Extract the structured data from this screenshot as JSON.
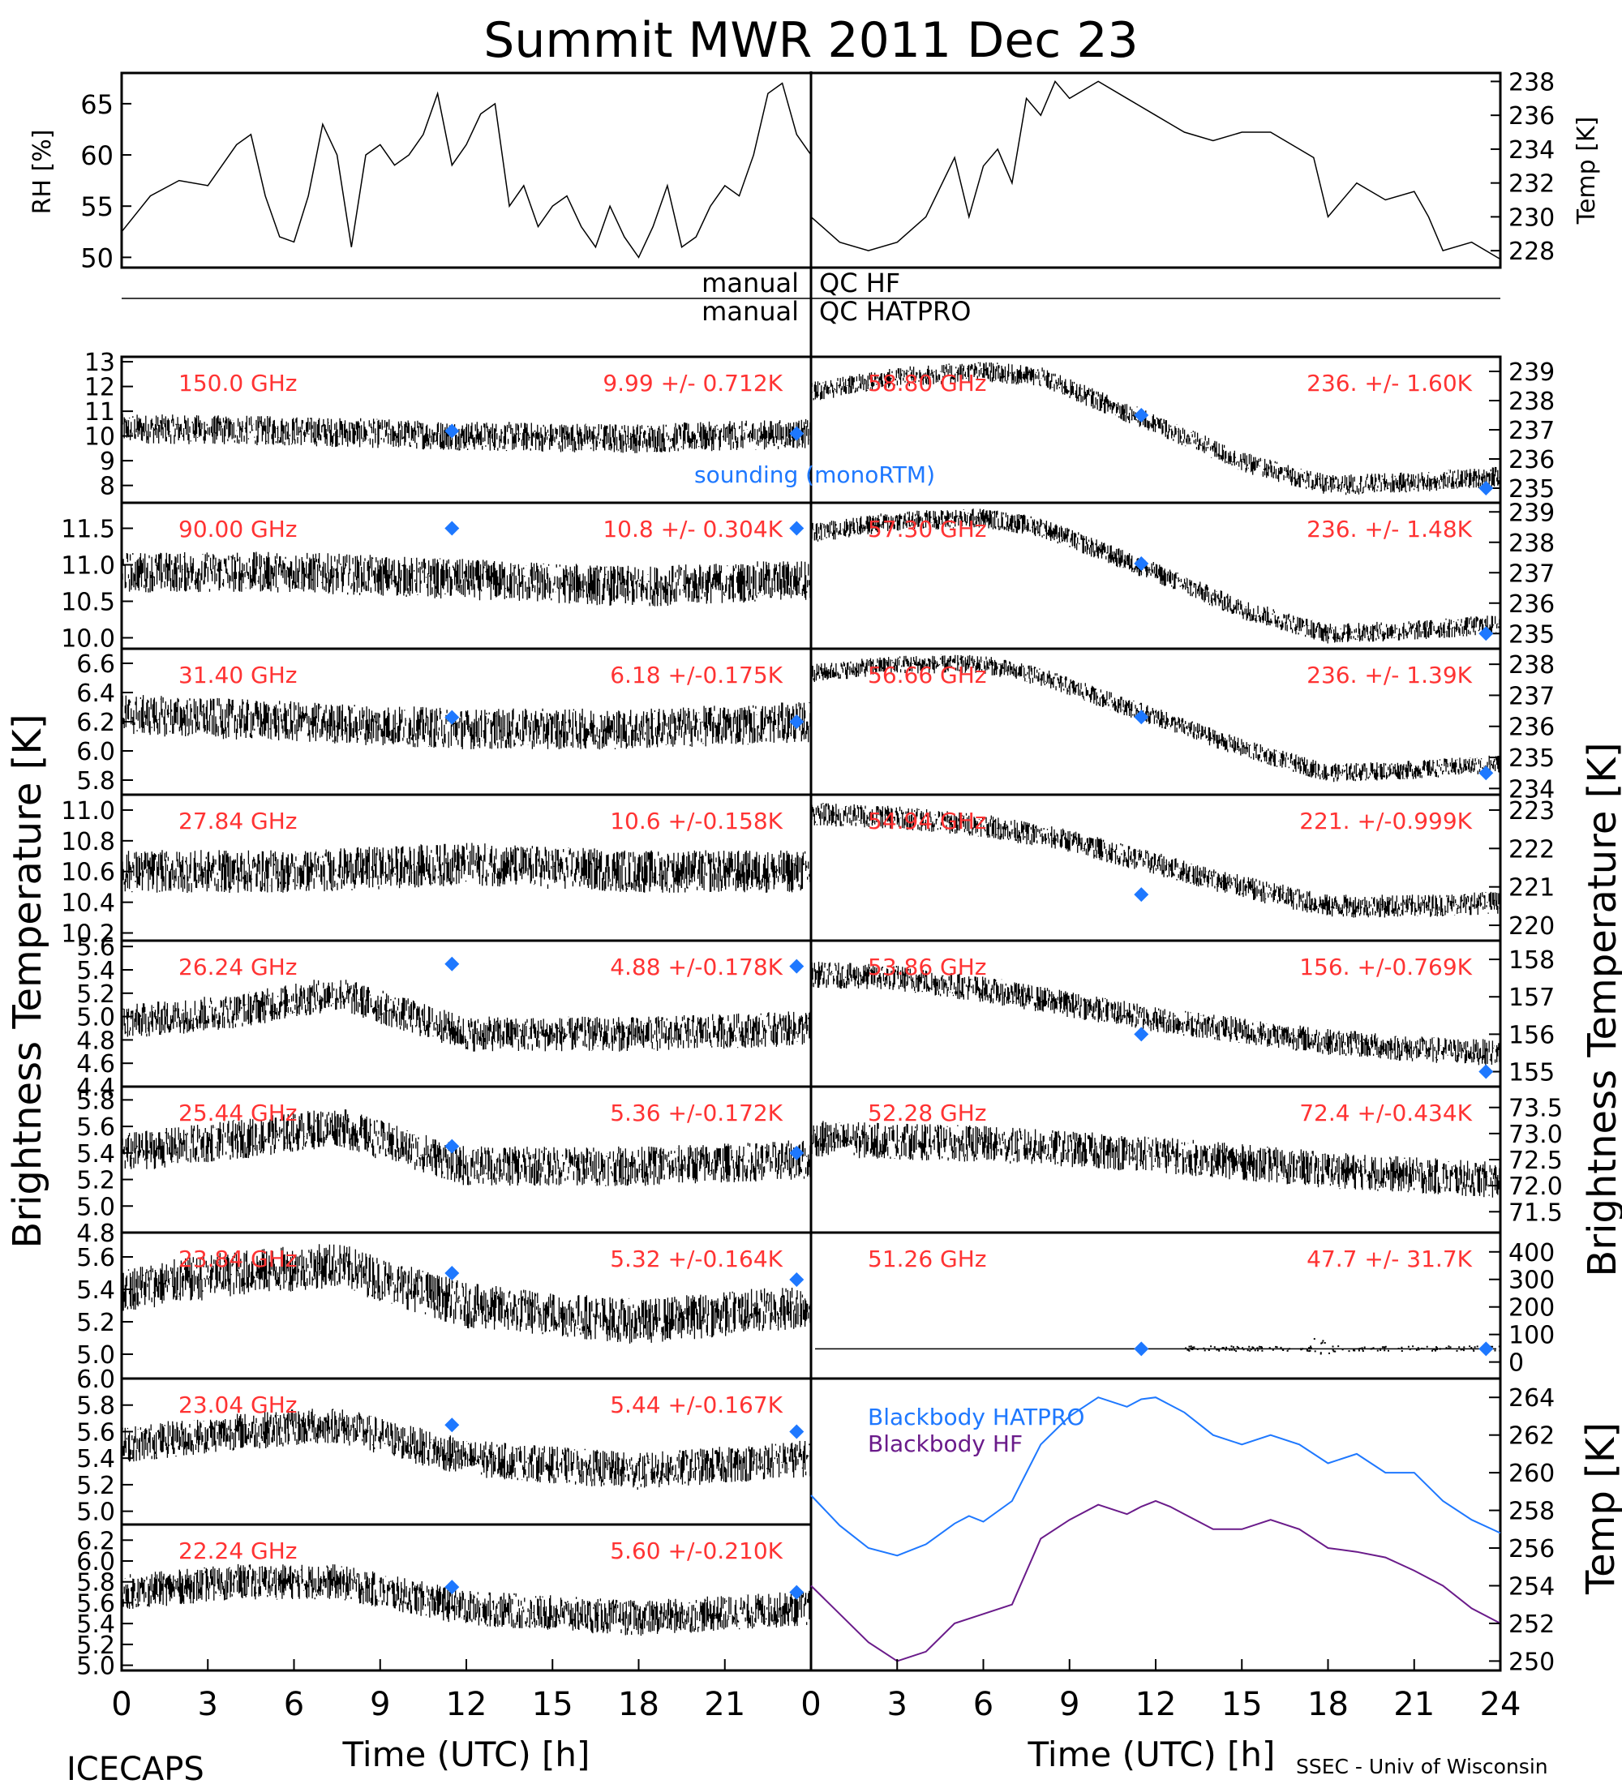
{
  "title": "Summit MWR 2011 Dec 23",
  "footer": {
    "left": "ICECAPS",
    "right": "SSEC - Univ of Wisconsin"
  },
  "axes": {
    "time_label": "Time (UTC) [h]",
    "time_ticks": [
      "0",
      "3",
      "6",
      "9",
      "12",
      "15",
      "18",
      "21",
      "24"
    ],
    "left_label": "Brightness Temperature [K]",
    "right_label": "Brightness Temperature [K]",
    "rh_label": "RH [%]",
    "temp_label": "Temp [K]",
    "bb_temp_label": "Temp [K]"
  },
  "qc": {
    "hf_left": "manual",
    "hf_right": "QC HF",
    "hatpro_left": "manual",
    "hatpro_right": "QC HATPRO"
  },
  "legend": {
    "sounding": "sounding (monoRTM)",
    "bb_hatpro": "Blackbody HATPRO",
    "bb_hf": "Blackbody HF"
  },
  "colors": {
    "annotation": "#ff3333",
    "sounding": "#1e78ff",
    "bb_hatpro": "#1e78ff",
    "bb_hf": "#6a1b8a",
    "trace": "#000000"
  },
  "chart_data": [
    {
      "type": "line",
      "title": "",
      "ylabel": "RH [%]",
      "ylim": [
        49,
        68
      ],
      "yticks": [
        "50",
        "55",
        "60",
        "65"
      ],
      "x": [
        0,
        1,
        2,
        3,
        4,
        4.5,
        5,
        5.5,
        6,
        6.5,
        7,
        7.5,
        8,
        8.5,
        9,
        9.5,
        10,
        10.5,
        11,
        11.5,
        12,
        12.5,
        13,
        13.5,
        14,
        14.5,
        15,
        15.5,
        16,
        16.5,
        17,
        17.5,
        18,
        18.5,
        19,
        19.5,
        20,
        20.5,
        21,
        21.5,
        22,
        22.5,
        23,
        23.5,
        24
      ],
      "values": [
        52.5,
        56,
        57.5,
        57,
        61,
        62,
        56,
        52,
        51.5,
        56,
        63,
        60,
        51,
        60,
        61,
        59,
        60,
        62,
        66,
        59,
        61,
        64,
        65,
        55,
        57,
        53,
        55,
        56,
        53,
        51,
        55,
        52,
        50,
        53,
        57,
        51,
        52,
        55,
        57,
        56,
        60,
        66,
        67,
        62,
        60
      ]
    },
    {
      "type": "line",
      "title": "",
      "ylabel": "Temp [K]",
      "ylim": [
        227,
        238.5
      ],
      "yticks": [
        "228",
        "230",
        "232",
        "234",
        "236",
        "238"
      ],
      "x": [
        0,
        1,
        2,
        3,
        4,
        5,
        5.5,
        6,
        6.5,
        7,
        7.5,
        8,
        8.5,
        9,
        9.5,
        10,
        11,
        12,
        12.5,
        13,
        14,
        15,
        16,
        17,
        17.5,
        18,
        19,
        20,
        21,
        21.5,
        22,
        23,
        24
      ],
      "values": [
        230,
        228.5,
        228,
        228.5,
        230,
        233.5,
        230,
        233,
        234,
        232,
        237,
        236,
        238,
        237,
        237.5,
        238,
        237,
        236,
        235.5,
        235,
        234.5,
        235,
        235,
        234,
        233.5,
        230,
        232,
        231,
        231.5,
        230,
        228,
        228.5,
        227.5
      ]
    },
    {
      "type": "scatter",
      "label": "150.0 GHz",
      "stats": "9.99 +/- 0.712K",
      "side": "left",
      "ylim": [
        7.3,
        13.2
      ],
      "yticks": [
        "8",
        "9",
        "10",
        "11",
        "12",
        "13"
      ],
      "tick_values": [
        8,
        9,
        10,
        11,
        12,
        13
      ],
      "trend_x": [
        0,
        6,
        12,
        18,
        24
      ],
      "trend_y": [
        10.3,
        10.2,
        10.0,
        9.9,
        10.1
      ],
      "noise": 0.6,
      "sounding_x": [
        11.5,
        23.5
      ],
      "sounding_y": [
        10.2,
        10.1
      ]
    },
    {
      "type": "scatter",
      "label": "90.00 GHz",
      "stats": "10.8 +/- 0.304K",
      "side": "left",
      "ylim": [
        9.85,
        11.85
      ],
      "yticks": [
        "10.0",
        "10.5",
        "11.0",
        "11.5"
      ],
      "tick_values": [
        10,
        10.5,
        11,
        11.5
      ],
      "trend_x": [
        0,
        6,
        12,
        18,
        24
      ],
      "trend_y": [
        10.9,
        10.9,
        10.8,
        10.7,
        10.8
      ],
      "noise": 0.28,
      "sounding_x": [
        11.5,
        23.5
      ],
      "sounding_y": [
        11.5,
        11.5
      ]
    },
    {
      "type": "scatter",
      "label": "31.40 GHz",
      "stats": "6.18 +/-0.175K",
      "side": "left",
      "ylim": [
        5.7,
        6.7
      ],
      "yticks": [
        "5.8",
        "6.0",
        "6.2",
        "6.4",
        "6.6"
      ],
      "tick_values": [
        5.8,
        6.0,
        6.2,
        6.4,
        6.6
      ],
      "trend_x": [
        0,
        6,
        12,
        18,
        24
      ],
      "trend_y": [
        6.25,
        6.2,
        6.15,
        6.15,
        6.2
      ],
      "noise": 0.14,
      "sounding_x": [
        11.5,
        23.5
      ],
      "sounding_y": [
        6.23,
        6.2
      ]
    },
    {
      "type": "scatter",
      "label": "27.84 GHz",
      "stats": "10.6 +/-0.158K",
      "side": "left",
      "ylim": [
        10.15,
        11.1
      ],
      "yticks": [
        "10.2",
        "10.4",
        "10.6",
        "10.8",
        "11.0"
      ],
      "tick_values": [
        10.2,
        10.4,
        10.6,
        10.8,
        11.0
      ],
      "trend_x": [
        0,
        6,
        12,
        18,
        24
      ],
      "trend_y": [
        10.6,
        10.6,
        10.65,
        10.6,
        10.6
      ],
      "noise": 0.14,
      "sounding_x": [],
      "sounding_y": []
    },
    {
      "type": "scatter",
      "label": "26.24 GHz",
      "stats": "4.88 +/-0.178K",
      "side": "left",
      "ylim": [
        4.4,
        5.65
      ],
      "yticks": [
        "4.4",
        "4.6",
        "4.8",
        "5.0",
        "5.2",
        "5.4",
        "5.6"
      ],
      "tick_values": [
        4.4,
        4.6,
        4.8,
        5.0,
        5.2,
        5.4,
        5.6
      ],
      "trend_x": [
        0,
        4,
        7.5,
        12,
        18,
        24
      ],
      "trend_y": [
        4.95,
        5.05,
        5.2,
        4.85,
        4.85,
        4.9
      ],
      "noise": 0.15,
      "sounding_x": [
        11.5,
        23.5
      ],
      "sounding_y": [
        5.45,
        5.43
      ]
    },
    {
      "type": "scatter",
      "label": "25.44 GHz",
      "stats": "5.36 +/-0.172K",
      "side": "left",
      "ylim": [
        4.8,
        5.9
      ],
      "yticks": [
        "4.8",
        "5.0",
        "5.2",
        "5.4",
        "5.6",
        "5.8"
      ],
      "tick_values": [
        4.8,
        5.0,
        5.2,
        5.4,
        5.6,
        5.8
      ],
      "trend_x": [
        0,
        4,
        7.5,
        12,
        18,
        24
      ],
      "trend_y": [
        5.4,
        5.5,
        5.6,
        5.3,
        5.3,
        5.35
      ],
      "noise": 0.15,
      "sounding_x": [
        11.5,
        23.5
      ],
      "sounding_y": [
        5.45,
        5.4
      ]
    },
    {
      "type": "scatter",
      "label": "23.84 GHz",
      "stats": "5.32 +/-0.164K",
      "side": "left",
      "ylim": [
        4.85,
        5.75
      ],
      "yticks": [
        "4.8",
        "5.0",
        "5.2",
        "5.4",
        "5.6"
      ],
      "tick_values": [
        4.8,
        5.0,
        5.2,
        5.4,
        5.6
      ],
      "trend_x": [
        0,
        4,
        7.5,
        12,
        18,
        24
      ],
      "trend_y": [
        5.4,
        5.5,
        5.55,
        5.3,
        5.2,
        5.3
      ],
      "noise": 0.14,
      "sounding_x": [
        11.5,
        23.5
      ],
      "sounding_y": [
        5.5,
        5.46
      ]
    },
    {
      "type": "scatter",
      "label": "23.04 GHz",
      "stats": "5.44 +/-0.167K",
      "side": "left",
      "ylim": [
        4.9,
        6.0
      ],
      "yticks": [
        "5.0",
        "5.2",
        "5.4",
        "5.6",
        "5.8",
        "6.0"
      ],
      "tick_values": [
        5.0,
        5.2,
        5.4,
        5.6,
        5.8,
        6.0
      ],
      "trend_x": [
        0,
        4,
        7.5,
        12,
        18,
        24
      ],
      "trend_y": [
        5.5,
        5.6,
        5.65,
        5.4,
        5.3,
        5.4
      ],
      "noise": 0.14,
      "sounding_x": [
        11.5,
        23.5
      ],
      "sounding_y": [
        5.65,
        5.6
      ]
    },
    {
      "type": "scatter",
      "label": "22.24 GHz",
      "stats": "5.60 +/-0.210K",
      "side": "left",
      "ylim": [
        4.95,
        6.35
      ],
      "yticks": [
        "5.0",
        "5.2",
        "5.4",
        "5.6",
        "5.8",
        "6.0",
        "6.2"
      ],
      "tick_values": [
        5.0,
        5.2,
        5.4,
        5.6,
        5.8,
        6.0,
        6.2
      ],
      "trend_x": [
        0,
        4,
        7.5,
        12,
        18,
        24
      ],
      "trend_y": [
        5.7,
        5.8,
        5.8,
        5.55,
        5.45,
        5.55
      ],
      "noise": 0.17,
      "sounding_x": [
        11.5,
        23.5
      ],
      "sounding_y": [
        5.75,
        5.7
      ]
    },
    {
      "type": "scatter",
      "label": "58.80 GHz",
      "stats": "236. +/- 1.60K",
      "side": "right",
      "ylim": [
        234.5,
        239.5
      ],
      "yticks": [
        "235",
        "236",
        "237",
        "238",
        "239"
      ],
      "tick_values": [
        235,
        236,
        237,
        238,
        239
      ],
      "trend_x": [
        0,
        3,
        6,
        8,
        12,
        15,
        18,
        21,
        24
      ],
      "trend_y": [
        238.3,
        238.8,
        239,
        238.8,
        237.2,
        235.9,
        235.1,
        235.2,
        235.4
      ],
      "noise": 0.35,
      "sounding_x": [
        11.5,
        23.5
      ],
      "sounding_y": [
        237.5,
        235.0
      ]
    },
    {
      "type": "scatter",
      "label": "57.30 GHz",
      "stats": "236. +/- 1.48K",
      "side": "right",
      "ylim": [
        234.5,
        239.3
      ],
      "yticks": [
        "235",
        "236",
        "237",
        "238",
        "239"
      ],
      "tick_values": [
        235,
        236,
        237,
        238,
        239
      ],
      "trend_x": [
        0,
        3,
        6,
        8,
        12,
        15,
        18,
        21,
        24
      ],
      "trend_y": [
        238.3,
        238.7,
        238.8,
        238.5,
        237,
        235.8,
        235,
        235.1,
        235.3
      ],
      "noise": 0.33,
      "sounding_x": [
        11.5,
        23.5
      ],
      "sounding_y": [
        237.3,
        235.0
      ]
    },
    {
      "type": "scatter",
      "label": "56.66 GHz",
      "stats": "236. +/- 1.39K",
      "side": "right",
      "ylim": [
        233.8,
        238.5
      ],
      "yticks": [
        "234",
        "235",
        "236",
        "237",
        "238"
      ],
      "tick_values": [
        234,
        235,
        236,
        237,
        238
      ],
      "trend_x": [
        0,
        3,
        6,
        8,
        12,
        15,
        18,
        21,
        24
      ],
      "trend_y": [
        237.7,
        238.0,
        238.0,
        237.6,
        236.3,
        235.3,
        234.5,
        234.6,
        234.8
      ],
      "noise": 0.3,
      "sounding_x": [
        11.5,
        23.5
      ],
      "sounding_y": [
        236.3,
        234.5
      ]
    },
    {
      "type": "scatter",
      "label": "54.94 GHz",
      "stats": "221. +/-0.999K",
      "side": "right",
      "ylim": [
        219.6,
        223.4
      ],
      "yticks": [
        "220",
        "221",
        "222",
        "223"
      ],
      "tick_values": [
        220,
        221,
        222,
        223
      ],
      "trend_x": [
        0,
        3,
        6,
        9,
        12,
        15,
        18,
        21,
        24
      ],
      "trend_y": [
        222.9,
        222.8,
        222.6,
        222.2,
        221.6,
        221.0,
        220.5,
        220.5,
        220.6
      ],
      "noise": 0.3,
      "sounding_x": [
        11.5
      ],
      "sounding_y": [
        220.8
      ]
    },
    {
      "type": "scatter",
      "label": "53.86 GHz",
      "stats": "156. +/-0.769K",
      "side": "right",
      "ylim": [
        154.6,
        158.5
      ],
      "yticks": [
        "155",
        "156",
        "157",
        "158"
      ],
      "tick_values": [
        155,
        156,
        157,
        158
      ],
      "trend_x": [
        0,
        3,
        6,
        9,
        12,
        15,
        18,
        21,
        24
      ],
      "trend_y": [
        157.6,
        157.5,
        157.2,
        156.8,
        156.4,
        156.1,
        155.8,
        155.6,
        155.5
      ],
      "noise": 0.35,
      "sounding_x": [
        11.5,
        23.5
      ],
      "sounding_y": [
        156.0,
        155.0
      ]
    },
    {
      "type": "scatter",
      "label": "52.28 GHz",
      "stats": "72.4 +/-0.434K",
      "side": "right",
      "ylim": [
        71.1,
        73.9
      ],
      "yticks": [
        "71.5",
        "72.0",
        "72.5",
        "73.0",
        "73.5"
      ],
      "tick_values": [
        71.5,
        72.0,
        72.5,
        73.0,
        73.5
      ],
      "trend_x": [
        0,
        6,
        12,
        18,
        24
      ],
      "trend_y": [
        72.9,
        72.8,
        72.6,
        72.3,
        72.1
      ],
      "noise": 0.35,
      "sounding_x": [],
      "sounding_y": []
    },
    {
      "type": "scatter",
      "label": "51.26 GHz",
      "stats": "47.7 +/- 31.7K",
      "side": "right",
      "ylim": [
        -60,
        470
      ],
      "yticks": [
        "0",
        "100",
        "200",
        "300",
        "400"
      ],
      "tick_values": [
        0,
        100,
        200,
        300,
        400
      ],
      "trend_x": [
        0,
        24
      ],
      "trend_y": [
        47.7,
        47.7
      ],
      "noise": 0,
      "sounding_x": [
        11.5,
        23.5
      ],
      "sounding_y": [
        47.7,
        47.7
      ]
    },
    {
      "type": "line",
      "title": "",
      "ylabel": "Temp [K]",
      "ylim": [
        249.5,
        265
      ],
      "yticks": [
        "250",
        "252",
        "254",
        "256",
        "258",
        "260",
        "262",
        "264"
      ],
      "tick_values": [
        250,
        252,
        254,
        256,
        258,
        260,
        262,
        264
      ],
      "series": [
        {
          "name": "Blackbody HATPRO",
          "x": [
            0,
            1,
            2,
            3,
            4,
            5,
            5.5,
            6,
            7,
            8,
            9,
            10,
            11,
            11.5,
            12,
            12.5,
            13,
            14,
            15,
            16,
            17,
            18,
            19,
            20,
            21,
            22,
            23,
            24
          ],
          "values": [
            258.8,
            257.2,
            256,
            255.6,
            256.2,
            257.3,
            257.7,
            257.4,
            258.5,
            261.5,
            263,
            264,
            263.5,
            263.9,
            264,
            263.6,
            263.2,
            262,
            261.5,
            262,
            261.5,
            260.5,
            261,
            260,
            260,
            258.5,
            257.5,
            256.8
          ]
        },
        {
          "name": "Blackbody HF",
          "x": [
            0,
            1,
            2,
            3,
            4,
            5,
            6,
            7,
            8,
            9,
            10,
            11,
            11.5,
            12,
            12.5,
            13,
            14,
            15,
            16,
            17,
            18,
            19,
            20,
            21,
            22,
            23,
            24
          ],
          "values": [
            254,
            252.5,
            251,
            250,
            250.5,
            252,
            252.5,
            253,
            256.5,
            257.5,
            258.3,
            257.8,
            258.2,
            258.5,
            258.2,
            257.8,
            257,
            257,
            257.5,
            257,
            256,
            255.8,
            255.5,
            254.8,
            254,
            252.8,
            252
          ]
        }
      ]
    }
  ]
}
